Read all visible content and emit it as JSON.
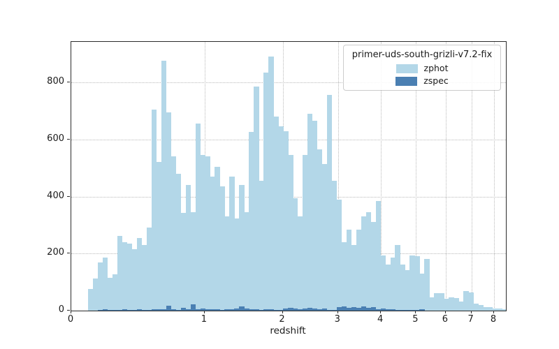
{
  "figure": {
    "background": "#ffffff",
    "axes_color": "#2b2b2b",
    "grid_color": "#b9b9b9"
  },
  "chart_data": {
    "type": "bar",
    "subtype": "histogram-stepfilled",
    "title": "",
    "xlabel": "redshift",
    "ylabel": "",
    "x_scale": "log10(1+z)",
    "x_ticks": [
      0,
      1,
      2,
      3,
      4,
      5,
      6,
      7,
      8
    ],
    "y_ticks": [
      0,
      200,
      400,
      600,
      800
    ],
    "xlim_u": [
      0,
      0.981
    ],
    "ylim": [
      0,
      942
    ],
    "grid": "dotted both axes",
    "legend_position": "upper right",
    "legend_title": "primer-uds-south-grizli-v7.2-fix",
    "bins": {
      "u_start": 0.038,
      "u_step": 0.011,
      "count": 86,
      "note": "u = log10(1+z); bins uniform in u; z from 0.09 to 8.6"
    },
    "series": [
      {
        "name": "zphot",
        "color": "#b3d7e8",
        "values": [
          75,
          112,
          170,
          186,
          116,
          128,
          263,
          239,
          234,
          215,
          255,
          230,
          290,
          705,
          520,
          875,
          695,
          540,
          480,
          343,
          440,
          345,
          655,
          545,
          540,
          470,
          505,
          435,
          330,
          471,
          324,
          441,
          344,
          626,
          785,
          455,
          835,
          890,
          680,
          645,
          630,
          545,
          395,
          330,
          545,
          690,
          665,
          565,
          515,
          755,
          455,
          390,
          240,
          285,
          230,
          285,
          330,
          345,
          310,
          385,
          194,
          162,
          186,
          231,
          162,
          141,
          194,
          190,
          130,
          181,
          47,
          61,
          61,
          41,
          47,
          45,
          33,
          69,
          64,
          24,
          20,
          12,
          12,
          8,
          8,
          5
        ]
      },
      {
        "name": "zspec",
        "color": "#4a7fb2",
        "values": [
          0,
          0,
          2,
          4,
          2,
          2,
          3,
          6,
          3,
          2,
          4,
          2,
          3,
          6,
          5,
          4,
          18,
          4,
          3,
          10,
          6,
          22,
          5,
          8,
          4,
          4,
          4,
          3,
          6,
          4,
          8,
          14,
          8,
          4,
          4,
          3,
          6,
          4,
          3,
          3,
          7,
          9,
          7,
          5,
          8,
          9,
          7,
          5,
          8,
          3,
          3,
          12,
          14,
          10,
          12,
          10,
          14,
          10,
          12,
          5,
          7,
          4,
          6,
          3,
          2,
          2,
          2,
          2,
          5,
          1,
          1,
          0,
          0,
          1,
          0,
          0,
          1,
          1,
          0,
          0,
          0,
          0,
          0,
          0,
          0,
          0
        ]
      }
    ]
  }
}
